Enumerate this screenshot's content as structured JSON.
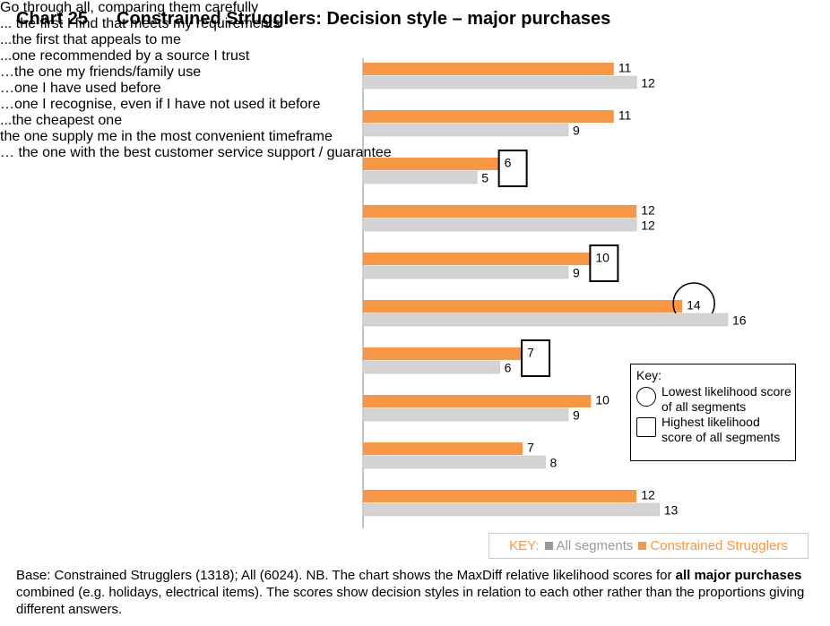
{
  "chart_data": {
    "type": "bar",
    "orientation": "horizontal",
    "chart_number": "Chart 25",
    "title": "Constrained Strugglers: Decision style – major purchases",
    "categories": [
      "Go through all, comparing them carefully",
      "... the first I find that meets my requirements",
      "...the first that appeals to me",
      "...one recommended by a source I trust",
      "…the one my friends/family use",
      "…one I have used before",
      "…one I recognise, even if I have not used it before",
      "...the cheapest one",
      "the one supply me in the most convenient timeframe",
      "… the one with the best customer service support / guarantee"
    ],
    "series": [
      {
        "name": "Constrained Strugglers",
        "color": "#f79646",
        "values": [
          11,
          11,
          6,
          12,
          10,
          14,
          7,
          10,
          7,
          12
        ],
        "highlights": [
          null,
          null,
          "square",
          null,
          "square",
          "circle",
          "square",
          null,
          null,
          null
        ]
      },
      {
        "name": "All segments",
        "color": "#d4d4d4",
        "values": [
          12,
          9,
          5,
          12,
          9,
          16,
          6,
          9,
          8,
          13
        ]
      }
    ],
    "xlim": [
      0,
      16
    ],
    "key": {
      "title": "Key:",
      "items": [
        {
          "shape": "circle",
          "label": "Lowest likelihood score of all segments"
        },
        {
          "shape": "square",
          "label": "Highest likelihood score of all segments"
        }
      ]
    },
    "legend_title": "KEY:",
    "footnote": [
      {
        "text": "Base: Constrained Strugglers (1318); All (6024). NB. The chart shows the MaxDiff relative likelihood scores for ",
        "bold": false
      },
      {
        "text": "all major purchases",
        "bold": true
      },
      {
        "text": " combined (e.g. holidays, electrical items). The scores show decision styles in relation to each other rather than the proportions giving different answers.",
        "bold": false
      }
    ]
  }
}
